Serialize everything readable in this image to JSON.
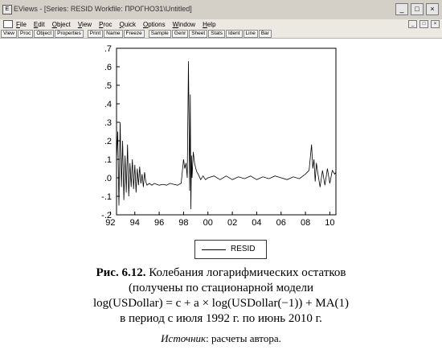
{
  "window": {
    "title": "EViews - [Series: RESID   Workfile: ПРОГНОЗ1\\Untitled]",
    "controls": [
      "_",
      "□",
      "×"
    ]
  },
  "menu": {
    "items": [
      "File",
      "Edit",
      "Object",
      "View",
      "Proc",
      "Quick",
      "Options",
      "Window",
      "Help"
    ],
    "right_controls": [
      "_",
      "□",
      "×"
    ]
  },
  "toolbar": {
    "buttons": [
      "View",
      "Proc",
      "Object",
      "Properties",
      "Print",
      "Name",
      "Freeze",
      "Sample",
      "Genr",
      "Sheet",
      "Stats",
      "Ident",
      "Line",
      "Bar"
    ]
  },
  "chart_data": {
    "type": "line",
    "title": "",
    "xlabel": "",
    "ylabel": "",
    "ylim": [
      -0.2,
      0.7
    ],
    "yticks": [
      ".7",
      ".6",
      ".5",
      ".4",
      ".3",
      ".2",
      ".1",
      ".0",
      "-.1",
      "-.2"
    ],
    "ytick_values": [
      0.7,
      0.6,
      0.5,
      0.4,
      0.3,
      0.2,
      0.1,
      0.0,
      -0.1,
      -0.2
    ],
    "xlim": [
      1992.5,
      2010.5
    ],
    "xticks": [
      "92",
      "94",
      "96",
      "98",
      "00",
      "02",
      "04",
      "06",
      "08",
      "10"
    ],
    "xtick_values": [
      1992,
      1994,
      1996,
      1998,
      2000,
      2002,
      2004,
      2006,
      2008,
      2010
    ],
    "grid": false,
    "legend_position": "bottom",
    "series": [
      {
        "name": "RESID",
        "x": [
          1992.5,
          1992.6,
          1992.7,
          1992.8,
          1992.9,
          1993.0,
          1993.1,
          1993.2,
          1993.3,
          1993.4,
          1993.5,
          1993.6,
          1993.7,
          1993.8,
          1993.9,
          1994.0,
          1994.1,
          1994.2,
          1994.3,
          1994.4,
          1994.5,
          1994.6,
          1994.7,
          1994.8,
          1994.9,
          1995.0,
          1995.2,
          1995.4,
          1995.6,
          1995.8,
          1996.0,
          1996.3,
          1996.6,
          1996.9,
          1997.2,
          1997.5,
          1997.8,
          1998.0,
          1998.1,
          1998.2,
          1998.3,
          1998.4,
          1998.5,
          1998.55,
          1998.6,
          1998.65,
          1998.7,
          1998.8,
          1998.9,
          1999.0,
          1999.1,
          1999.2,
          1999.4,
          1999.6,
          1999.8,
          2000.0,
          2000.5,
          2001.0,
          2001.5,
          2002.0,
          2002.5,
          2003.0,
          2003.5,
          2004.0,
          2004.5,
          2005.0,
          2005.5,
          2006.0,
          2006.5,
          2007.0,
          2007.5,
          2008.0,
          2008.3,
          2008.5,
          2008.6,
          2008.7,
          2008.8,
          2008.9,
          2009.0,
          2009.2,
          2009.4,
          2009.6,
          2009.8,
          2010.0,
          2010.2,
          2010.4,
          2010.5
        ],
        "values": [
          0.1,
          0.25,
          -0.15,
          0.3,
          -0.05,
          0.2,
          -0.12,
          0.12,
          -0.08,
          0.18,
          -0.1,
          0.08,
          -0.05,
          0.1,
          -0.06,
          0.07,
          -0.08,
          0.05,
          -0.04,
          0.06,
          -0.03,
          0.02,
          -0.05,
          0.03,
          -0.02,
          -0.04,
          -0.03,
          -0.04,
          -0.03,
          -0.035,
          -0.04,
          -0.035,
          -0.04,
          -0.03,
          -0.035,
          -0.04,
          -0.03,
          0.1,
          0.05,
          0.08,
          0.0,
          0.63,
          -0.07,
          0.45,
          -0.17,
          0.12,
          0.0,
          0.14,
          0.08,
          0.05,
          0.03,
          0.02,
          -0.01,
          0.01,
          -0.01,
          0.0,
          0.01,
          -0.01,
          0.01,
          -0.01,
          0.005,
          -0.005,
          0.01,
          -0.01,
          0.005,
          -0.005,
          0.01,
          0.0,
          -0.01,
          0.005,
          -0.005,
          0.02,
          0.04,
          0.18,
          0.05,
          0.1,
          -0.02,
          0.08,
          0.03,
          -0.05,
          0.04,
          -0.04,
          0.05,
          -0.03,
          0.04,
          0.02,
          0.03
        ]
      }
    ]
  },
  "caption": {
    "figure_label": "Рис. 6.12.",
    "line1": "Колебания логарифмических остатков",
    "line2": "(получены по стационарной модели",
    "line3": "log(USDollar) = c + a × log(USDollar(−1)) + MA(1)",
    "line4": "в период с июля 1992 г. по июнь 2010 г."
  },
  "source": {
    "label": "Источник",
    "text": ": расчеты автора."
  }
}
